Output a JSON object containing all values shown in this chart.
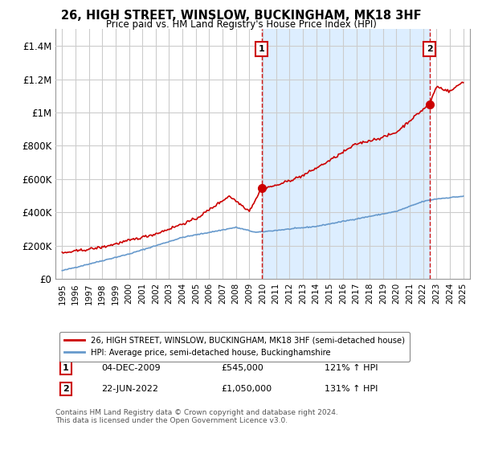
{
  "title": "26, HIGH STREET, WINSLOW, BUCKINGHAM, MK18 3HF",
  "subtitle": "Price paid vs. HM Land Registry's House Price Index (HPI)",
  "legend_line1": "26, HIGH STREET, WINSLOW, BUCKINGHAM, MK18 3HF (semi-detached house)",
  "legend_line2": "HPI: Average price, semi-detached house, Buckinghamshire",
  "footer": "Contains HM Land Registry data © Crown copyright and database right 2024.\nThis data is licensed under the Open Government Licence v3.0.",
  "annotation1_label": "1",
  "annotation1_date": "04-DEC-2009",
  "annotation1_price": "£545,000",
  "annotation1_hpi": "121% ↑ HPI",
  "annotation2_label": "2",
  "annotation2_date": "22-JUN-2022",
  "annotation2_price": "£1,050,000",
  "annotation2_hpi": "131% ↑ HPI",
  "red_line_color": "#cc0000",
  "blue_line_color": "#6699cc",
  "shade_color": "#ddeeff",
  "background_color": "#ffffff",
  "grid_color": "#cccccc",
  "vline_color": "#cc0000",
  "sale1_x": 2009.92,
  "sale1_y": 545000,
  "sale2_x": 2022.47,
  "sale2_y": 1050000,
  "ylim": [
    0,
    1500000
  ],
  "xlim": [
    1994.5,
    2025.5
  ],
  "yticks": [
    0,
    200000,
    400000,
    600000,
    800000,
    1000000,
    1200000,
    1400000
  ],
  "ytick_labels": [
    "£0",
    "£200K",
    "£400K",
    "£600K",
    "£800K",
    "£1M",
    "£1.2M",
    "£1.4M"
  ],
  "xticks": [
    1995,
    1996,
    1997,
    1998,
    1999,
    2000,
    2001,
    2002,
    2003,
    2004,
    2005,
    2006,
    2007,
    2008,
    2009,
    2010,
    2011,
    2012,
    2013,
    2014,
    2015,
    2016,
    2017,
    2018,
    2019,
    2020,
    2021,
    2022,
    2023,
    2024,
    2025
  ]
}
